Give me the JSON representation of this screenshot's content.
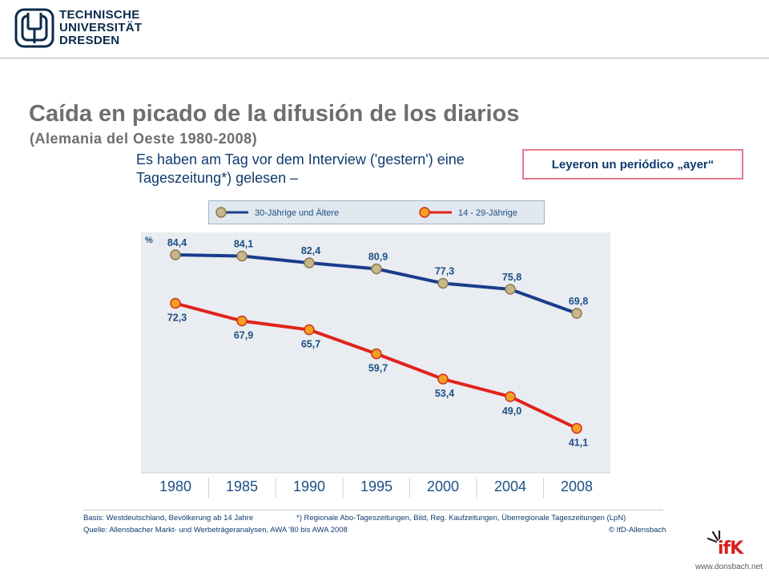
{
  "header": {
    "logo_lines": [
      "TECHNISCHE",
      "UNIVERSITÄT",
      "DRESDEN"
    ]
  },
  "slide": {
    "title": "Caída en picado de la difusión de los diarios",
    "subtitle": "(Alemania del Oeste 1980-2008)",
    "callout": "Leyeron un periódico „ayer“"
  },
  "chart_data": {
    "type": "line",
    "intro_lines": [
      "Es haben am Tag vor dem Interview ('gestern') eine",
      "Tageszeitung*) gelesen –"
    ],
    "x": [
      "1980",
      "1985",
      "1990",
      "1995",
      "2000",
      "2004",
      "2008"
    ],
    "y_unit_label": "%",
    "ylim": [
      30,
      90
    ],
    "grid": false,
    "legend_placement": "top",
    "series": [
      {
        "name": "30-Jährige und Ältere",
        "values": [
          84.4,
          84.1,
          82.4,
          80.9,
          77.3,
          75.8,
          69.8
        ],
        "labels": [
          "84,4",
          "84,1",
          "82,4",
          "80,9",
          "77,3",
          "75,8",
          "69,8"
        ],
        "color": "#1a3c8c",
        "marker": "#c8b78a"
      },
      {
        "name": "14 - 29-Jährige",
        "values": [
          72.3,
          67.9,
          65.7,
          59.7,
          53.4,
          49.0,
          41.1
        ],
        "labels": [
          "72,3",
          "67,9",
          "65,7",
          "59,7",
          "53,4",
          "49,0",
          "41,1"
        ],
        "color": "#e0231c",
        "marker": "#f5a020"
      }
    ],
    "colors": {
      "plot_bg": "#e9ecf0",
      "axis_text": "#1d4f86"
    }
  },
  "footer": {
    "basis": "Basis: Westdeutschland, Bevölkerung ab 14 Jahre",
    "note": "*) Regionale Abo-Tageszeitungen, Bild, Reg. Kaufzeitungen, Überregionale Tageszeitungen (LpN)",
    "source": "Quelle: Allensbacher Markt- und Werbeträgeranalysen, AWA '80 bis AWA 2008",
    "copyright": "© IfD-Allensbach"
  },
  "branding": {
    "ifk": "ifK",
    "url": "www.donsbach.net"
  }
}
